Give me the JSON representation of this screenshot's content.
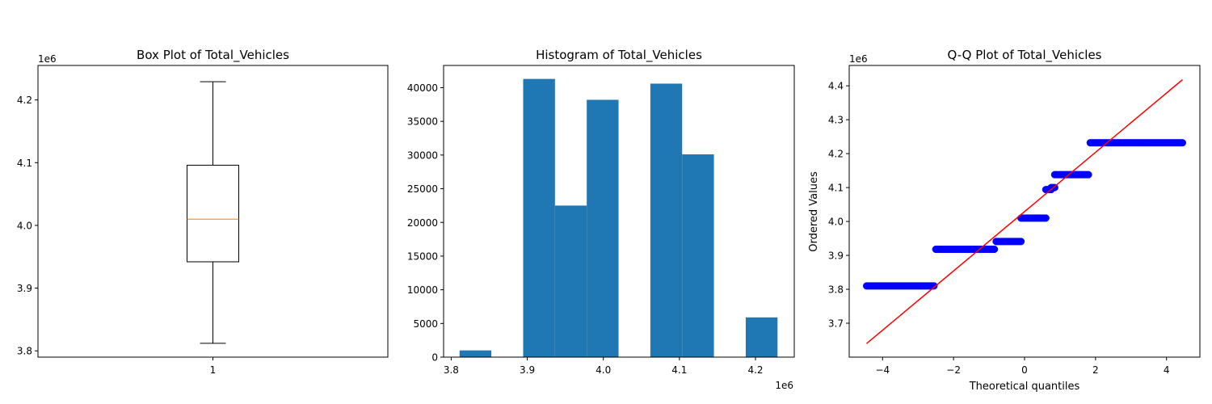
{
  "chart_data": [
    {
      "type": "box",
      "title": "Box Plot of Total_Vehicles",
      "xlabel": "",
      "ylabel": "",
      "offset_label": "1e6",
      "categories": [
        "1"
      ],
      "ylim": [
        3.79,
        4.255
      ],
      "yticks": [
        3.8,
        3.9,
        4.0,
        4.1,
        4.2
      ],
      "box": {
        "whisker_low": 3.812,
        "q1": 3.942,
        "median": 4.01,
        "q3": 4.096,
        "whisker_high": 4.229
      },
      "colors": {
        "median": "#ff7f0e",
        "box": "#000000"
      }
    },
    {
      "type": "bar",
      "title": "Histogram of Total_Vehicles",
      "xlabel": "",
      "ylabel": "",
      "offset_label": "1e6",
      "xlim": [
        3.79,
        4.251
      ],
      "ylim": [
        0,
        43300
      ],
      "xticks": [
        3.8,
        3.9,
        4.0,
        4.1,
        4.2
      ],
      "yticks": [
        0,
        5000,
        10000,
        15000,
        20000,
        25000,
        30000,
        35000,
        40000
      ],
      "bins": [
        {
          "x0": 3.811,
          "x1": 3.8528,
          "value": 1000
        },
        {
          "x0": 3.8528,
          "x1": 3.8946,
          "value": 0
        },
        {
          "x0": 3.8946,
          "x1": 3.9364,
          "value": 41300
        },
        {
          "x0": 3.9364,
          "x1": 3.9782,
          "value": 22500
        },
        {
          "x0": 3.9782,
          "x1": 4.02,
          "value": 38200
        },
        {
          "x0": 4.02,
          "x1": 4.0618,
          "value": 0
        },
        {
          "x0": 4.0618,
          "x1": 4.1036,
          "value": 40600
        },
        {
          "x0": 4.1036,
          "x1": 4.1454,
          "value": 30100
        },
        {
          "x0": 4.1454,
          "x1": 4.1872,
          "value": 0
        },
        {
          "x0": 4.1872,
          "x1": 4.229,
          "value": 5900
        }
      ],
      "colors": {
        "bar": "#1f77b4"
      }
    },
    {
      "type": "scatter",
      "title": "Q-Q Plot of Total_Vehicles",
      "xlabel": "Theoretical quantiles",
      "ylabel": "Ordered Values",
      "offset_label": "1e6",
      "xlim": [
        -4.94,
        4.94
      ],
      "ylim": [
        3.6,
        4.46
      ],
      "xticks": [
        -4,
        -2,
        0,
        2,
        4
      ],
      "yticks": [
        3.7,
        3.8,
        3.9,
        4.0,
        4.1,
        4.2,
        4.3,
        4.4
      ],
      "steps": [
        {
          "x_from": -4.45,
          "x_to": -2.55,
          "y": 3.81
        },
        {
          "x_from": -2.5,
          "x_to": -0.85,
          "y": 3.918
        },
        {
          "x_from": -0.8,
          "x_to": -0.1,
          "y": 3.941
        },
        {
          "x_from": -0.1,
          "x_to": 0.6,
          "y": 4.01
        },
        {
          "x_from": 0.6,
          "x_to": 0.75,
          "y": 4.094
        },
        {
          "x_from": 0.75,
          "x_to": 0.85,
          "y": 4.1
        },
        {
          "x_from": 0.85,
          "x_to": 1.8,
          "y": 4.138
        },
        {
          "x_from": 1.85,
          "x_to": 4.45,
          "y": 4.232
        }
      ],
      "fit_line": {
        "x": [
          -4.45,
          4.45
        ],
        "y": [
          3.64,
          4.418
        ]
      },
      "colors": {
        "points": "#0000ff",
        "line": "#ff0000"
      }
    }
  ]
}
